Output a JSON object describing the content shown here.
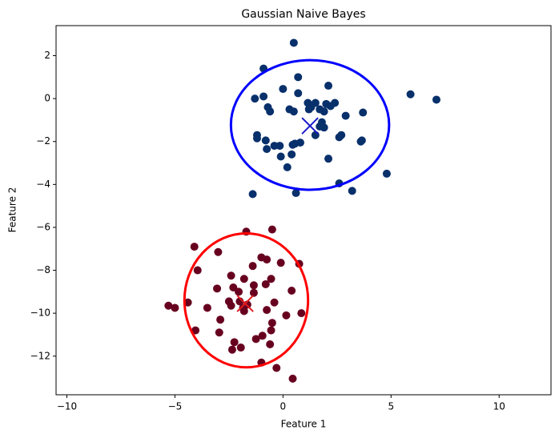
{
  "chart_data": {
    "type": "scatter",
    "title": "Gaussian Naive Bayes",
    "x_label": "Feature 1",
    "y_label": "Feature 2",
    "xlim": [
      -10.5,
      12.4
    ],
    "ylim": [
      -13.8,
      3.4
    ],
    "xticks": [
      {
        "value": -10,
        "label": "−10"
      },
      {
        "value": -5,
        "label": "−5"
      },
      0,
      5,
      10
    ],
    "yticks": [
      {
        "value": -12,
        "label": "−12"
      },
      {
        "value": -10,
        "label": "−10"
      },
      {
        "value": -8,
        "label": "−8"
      },
      {
        "value": -6,
        "label": "−6"
      },
      {
        "value": -4,
        "label": "−4"
      },
      {
        "value": -2,
        "label": "−2"
      },
      0,
      2
    ],
    "grid": false,
    "series": [
      {
        "color": "#08306b",
        "x": [
          0.5,
          -0.9,
          0.7,
          0.0,
          2.1,
          -1.3,
          -0.9,
          -0.7,
          -0.6,
          0.7,
          1.15,
          1.3,
          1.5,
          1.7,
          2.0,
          2.2,
          2.4,
          0.3,
          0.5,
          1.2,
          1.9,
          2.9,
          3.7,
          5.9,
          7.1,
          1.8,
          1.7,
          1.5,
          1.9,
          2.6,
          2.7,
          3.6,
          3.65,
          -1.2,
          -1.2,
          -0.8,
          -0.4,
          -0.15,
          0.55,
          0.8,
          0.45,
          -0.75,
          -0.1,
          0.4,
          0.2,
          2.1,
          4.8,
          2.6,
          3.2,
          0.6,
          -1.4
        ],
        "y": [
          2.6,
          1.4,
          1.0,
          0.45,
          0.6,
          0.0,
          0.1,
          -0.4,
          -0.6,
          0.25,
          -0.2,
          -0.4,
          -0.2,
          -0.5,
          -0.25,
          -0.35,
          -0.2,
          -0.5,
          -0.6,
          -0.5,
          -0.6,
          -0.8,
          -0.65,
          0.2,
          -0.05,
          -1.1,
          -1.3,
          -1.7,
          -1.35,
          -1.8,
          -1.7,
          -2.0,
          -1.95,
          -1.7,
          -1.85,
          -1.95,
          -2.2,
          -2.2,
          -2.1,
          -2.05,
          -2.15,
          -2.35,
          -2.7,
          -2.6,
          -3.2,
          -2.8,
          -3.5,
          -3.95,
          -4.3,
          -4.4,
          -4.45
        ]
      },
      {
        "color": "#67001f",
        "x": [
          -0.5,
          -1.7,
          -4.1,
          -3.0,
          -1.0,
          -0.75,
          -0.1,
          0.75,
          -1.4,
          -3.95,
          -2.4,
          -1.8,
          -0.55,
          -0.8,
          -2.3,
          -3.05,
          -1.35,
          -2.05,
          0.4,
          -1.35,
          -5.0,
          -4.4,
          -3.5,
          -2.5,
          -2.4,
          -2.0,
          -1.65,
          -1.8,
          -1.85,
          -0.4,
          -0.75,
          -5.3,
          0.85,
          0.15,
          -0.5,
          -4.05,
          -2.95,
          -0.95,
          -0.55,
          -1.25,
          -2.25,
          -2.35,
          -1.95,
          -0.6,
          -1.0,
          -0.3,
          0.45,
          -2.9
        ],
        "y": [
          -6.1,
          -6.2,
          -6.9,
          -7.15,
          -7.4,
          -7.5,
          -7.65,
          -7.7,
          -7.8,
          -8.0,
          -8.25,
          -8.4,
          -8.4,
          -8.65,
          -8.8,
          -8.85,
          -8.7,
          -9.0,
          -8.95,
          -9.05,
          -9.75,
          -9.5,
          -9.75,
          -9.45,
          -9.65,
          -9.45,
          -9.6,
          -9.9,
          -9.75,
          -9.5,
          -9.85,
          -9.65,
          -10.0,
          -10.1,
          -10.45,
          -10.8,
          -10.9,
          -11.05,
          -10.8,
          -11.2,
          -11.35,
          -11.7,
          -11.6,
          -11.45,
          -12.3,
          -12.55,
          -13.05,
          -10.3
        ]
      }
    ],
    "means": [
      {
        "x": 1.25,
        "y": -1.27,
        "color": "#1a1acc"
      },
      {
        "x": -1.75,
        "y": -9.55,
        "color": "#e31a1c"
      }
    ],
    "ellipses": [
      {
        "cx": 1.25,
        "cy": -1.23,
        "rx": 3.66,
        "ry": 3.02,
        "color": "#0000ff"
      },
      {
        "cx": -1.7,
        "cy": -9.4,
        "rx": 2.86,
        "ry": 3.12,
        "color": "#ff0000"
      }
    ]
  }
}
